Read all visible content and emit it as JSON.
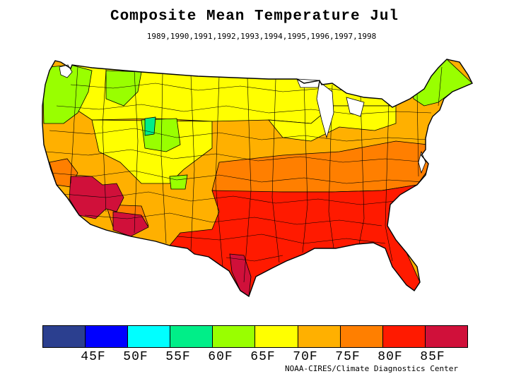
{
  "title": "Composite Mean Temperature Jul",
  "years": "1989,1990,1991,1992,1993,1994,1995,1996,1997,1998",
  "credit": "NOAA-CIRES/Climate Diagnostics Center",
  "legend": {
    "swatch_colors": [
      "#2b3f8f",
      "#0000ff",
      "#00ffff",
      "#00ee88",
      "#99ff00",
      "#ffff00",
      "#ffb000",
      "#ff7f00",
      "#ff1a00",
      "#d0103a"
    ],
    "ticks": [
      "45F",
      "50F",
      "55F",
      "60F",
      "65F",
      "70F",
      "75F",
      "80F",
      "85F"
    ]
  },
  "regions": [
    {
      "name": "pacific-northwest",
      "temp_f": 62,
      "color": "#99ff00"
    },
    {
      "name": "northern-rockies",
      "temp_f": 66,
      "color": "#ffff00"
    },
    {
      "name": "northern-plains",
      "temp_f": 68,
      "color": "#ffff00"
    },
    {
      "name": "great-lakes",
      "temp_f": 68,
      "color": "#ffff00"
    },
    {
      "name": "new-england",
      "temp_f": 64,
      "color": "#99ff00"
    },
    {
      "name": "great-basin",
      "temp_f": 72,
      "color": "#ffb000"
    },
    {
      "name": "central-plains",
      "temp_f": 74,
      "color": "#ffb000"
    },
    {
      "name": "ohio-valley",
      "temp_f": 74,
      "color": "#ffb000"
    },
    {
      "name": "mid-atlantic",
      "temp_f": 76,
      "color": "#ff7f00"
    },
    {
      "name": "central-california",
      "temp_f": 77,
      "color": "#ff7f00"
    },
    {
      "name": "southern-plains",
      "temp_f": 80,
      "color": "#ff1a00"
    },
    {
      "name": "southeast",
      "temp_f": 81,
      "color": "#ff1a00"
    },
    {
      "name": "florida",
      "temp_f": 82,
      "color": "#ff1a00"
    },
    {
      "name": "desert-southwest",
      "temp_f": 87,
      "color": "#d0103a"
    },
    {
      "name": "south-texas",
      "temp_f": 86,
      "color": "#d0103a"
    },
    {
      "name": "yellowstone",
      "temp_f": 58,
      "color": "#00ee88"
    }
  ]
}
